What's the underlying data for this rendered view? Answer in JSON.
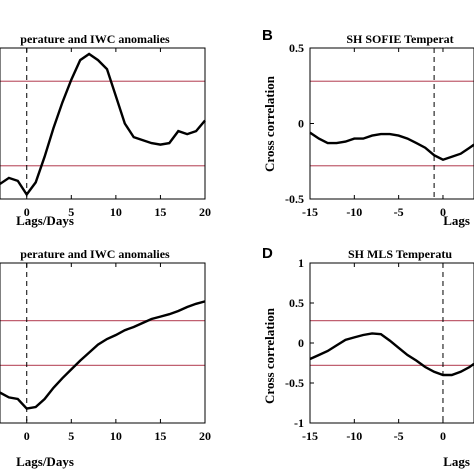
{
  "chart_data": [
    {
      "id": "A",
      "type": "line",
      "panel_letter": "",
      "title": "perature and IWC anomalies",
      "xlabel": "Lags/Days",
      "ylabel": "",
      "xlim": [
        -3,
        20
      ],
      "ylim": [
        -0.5,
        0.5
      ],
      "x_ticks": [
        0,
        5,
        10,
        15,
        20
      ],
      "y_ticks": [],
      "significance": [
        0.28,
        -0.28
      ],
      "vline": 0,
      "x": [
        -3,
        -2,
        -1,
        0,
        1,
        2,
        3,
        4,
        5,
        6,
        7,
        8,
        9,
        10,
        11,
        12,
        13,
        14,
        15,
        16,
        17,
        18,
        19,
        20
      ],
      "y": [
        -0.4,
        -0.36,
        -0.38,
        -0.47,
        -0.39,
        -0.22,
        -0.03,
        0.14,
        0.29,
        0.42,
        0.46,
        0.42,
        0.36,
        0.18,
        0.0,
        -0.09,
        -0.11,
        -0.13,
        -0.14,
        -0.13,
        -0.05,
        -0.07,
        -0.05,
        0.02
      ]
    },
    {
      "id": "B",
      "type": "line",
      "panel_letter": "B",
      "title": "SH SOFIE Temperat",
      "xlabel": "Lags",
      "ylabel": "Cross correlation",
      "xlim": [
        -15,
        3.5
      ],
      "ylim": [
        -0.5,
        0.5
      ],
      "x_ticks": [
        -15,
        -10,
        -5,
        0
      ],
      "x_tick_labels": [
        "-15",
        "-10",
        "-5",
        "0"
      ],
      "y_ticks": [
        -0.5,
        0,
        0.5
      ],
      "y_tick_labels": [
        "-0.5",
        "0",
        "0.5"
      ],
      "significance": [
        0.28,
        -0.28
      ],
      "vline": -1,
      "x": [
        -15,
        -14,
        -13,
        -12,
        -11,
        -10,
        -9,
        -8,
        -7,
        -6,
        -5,
        -4,
        -3,
        -2,
        -1,
        0,
        1,
        2,
        3,
        3.5
      ],
      "y": [
        -0.06,
        -0.1,
        -0.13,
        -0.13,
        -0.12,
        -0.1,
        -0.1,
        -0.08,
        -0.07,
        -0.07,
        -0.08,
        -0.1,
        -0.13,
        -0.16,
        -0.21,
        -0.24,
        -0.22,
        -0.2,
        -0.16,
        -0.14
      ]
    },
    {
      "id": "C",
      "type": "line",
      "panel_letter": "",
      "title": "perature and IWC anomalies",
      "xlabel": "Lags/Days",
      "ylabel": "",
      "xlim": [
        -3,
        20
      ],
      "ylim": [
        -1,
        1
      ],
      "x_ticks": [
        0,
        5,
        10,
        15,
        20
      ],
      "y_ticks": [],
      "significance": [
        0.28,
        -0.28
      ],
      "vline": 0,
      "x": [
        -3,
        -2,
        -1,
        0,
        1,
        2,
        3,
        4,
        5,
        6,
        7,
        8,
        9,
        10,
        11,
        12,
        13,
        14,
        15,
        16,
        17,
        18,
        19,
        20
      ],
      "y": [
        -0.62,
        -0.68,
        -0.7,
        -0.82,
        -0.8,
        -0.7,
        -0.56,
        -0.44,
        -0.33,
        -0.22,
        -0.12,
        -0.02,
        0.05,
        0.1,
        0.16,
        0.2,
        0.25,
        0.3,
        0.33,
        0.36,
        0.4,
        0.45,
        0.49,
        0.52
      ]
    },
    {
      "id": "D",
      "type": "line",
      "panel_letter": "D",
      "title": "SH MLS Temperatu",
      "xlabel": "Lags",
      "ylabel": "Cross correlation",
      "xlim": [
        -15,
        3.5
      ],
      "ylim": [
        -1,
        1
      ],
      "x_ticks": [
        -15,
        -10,
        -5,
        0
      ],
      "x_tick_labels": [
        "-15",
        "-10",
        "-5",
        "0"
      ],
      "y_ticks": [
        -1,
        -0.5,
        0,
        0.5,
        1
      ],
      "y_tick_labels": [
        "-1",
        "-0.5",
        "0",
        "0.5",
        "1"
      ],
      "significance": [
        0.28,
        -0.28
      ],
      "vline": 0,
      "x": [
        -15,
        -14,
        -13,
        -12,
        -11,
        -10,
        -9,
        -8,
        -7,
        -6,
        -5,
        -4,
        -3,
        -2,
        -1,
        0,
        1,
        2,
        3,
        3.5
      ],
      "y": [
        -0.2,
        -0.15,
        -0.1,
        -0.03,
        0.04,
        0.07,
        0.1,
        0.12,
        0.11,
        0.03,
        -0.06,
        -0.15,
        -0.22,
        -0.3,
        -0.36,
        -0.4,
        -0.4,
        -0.36,
        -0.3,
        -0.26
      ]
    }
  ],
  "colors": {
    "series": "#000000",
    "significance": "#c06070",
    "background": "#ffffff"
  }
}
